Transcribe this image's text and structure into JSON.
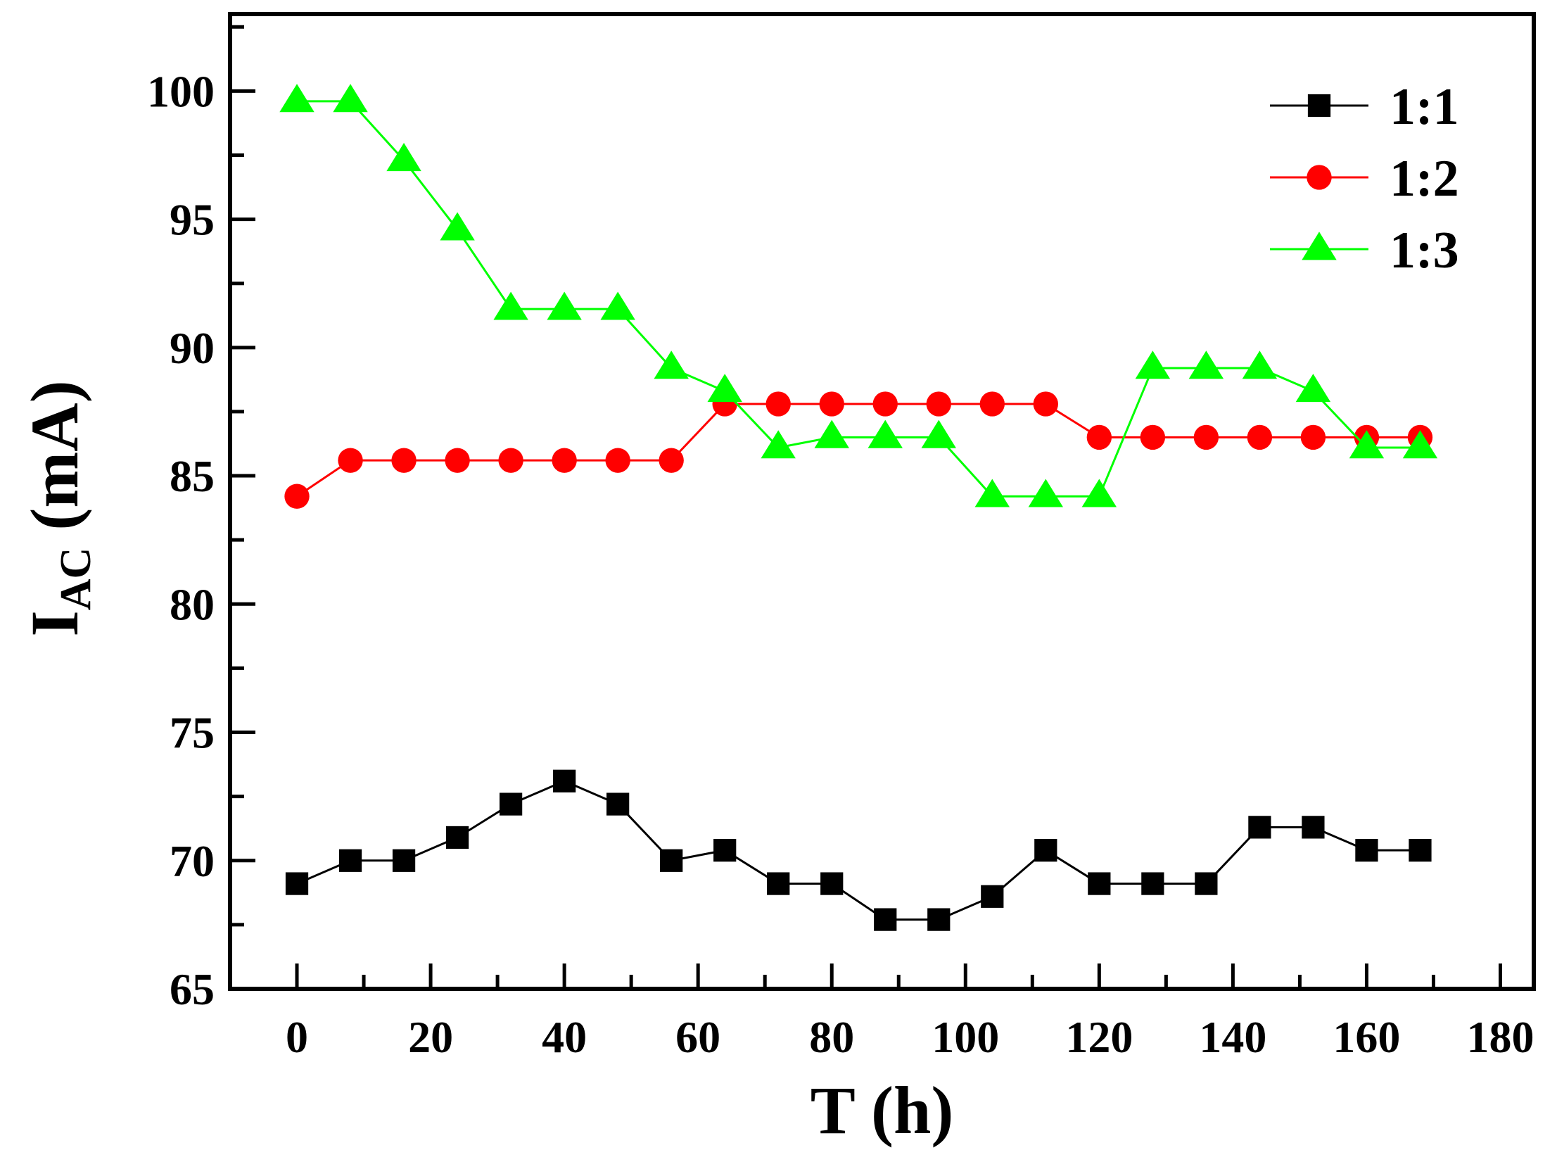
{
  "chart_data": {
    "type": "line",
    "title": "",
    "xlabel": "T (h)",
    "ylabel": {
      "main": "I",
      "subscript": "AC",
      "units": " (mA)"
    },
    "xlim": [
      -10,
      185
    ],
    "ylim": [
      65,
      103
    ],
    "xticks": [
      0,
      20,
      40,
      60,
      80,
      100,
      120,
      140,
      160,
      180
    ],
    "yticks": [
      65,
      70,
      75,
      80,
      85,
      90,
      95,
      100
    ],
    "grid": false,
    "legend_position": "top-right",
    "x": [
      0,
      8,
      16,
      24,
      32,
      40,
      48,
      56,
      64,
      72,
      80,
      88,
      96,
      104,
      112,
      120,
      128,
      136,
      144,
      152,
      160,
      168
    ],
    "series": [
      {
        "name": "1:1",
        "marker": "square",
        "color": "#000000",
        "values": [
          69.1,
          70.0,
          70.0,
          70.9,
          72.2,
          73.1,
          72.2,
          70.0,
          70.4,
          69.1,
          69.1,
          67.7,
          67.7,
          68.6,
          70.4,
          69.1,
          69.1,
          69.1,
          71.3,
          71.3,
          70.4,
          70.4
        ]
      },
      {
        "name": "1:2",
        "marker": "circle",
        "color": "#ff0000",
        "values": [
          84.2,
          85.6,
          85.6,
          85.6,
          85.6,
          85.6,
          85.6,
          85.6,
          87.8,
          87.8,
          87.8,
          87.8,
          87.8,
          87.8,
          87.8,
          86.5,
          86.5,
          86.5,
          86.5,
          86.5,
          86.5,
          86.5
        ]
      },
      {
        "name": "1:3",
        "marker": "triangle",
        "color": "#00ff00",
        "values": [
          99.6,
          99.6,
          97.3,
          94.6,
          91.5,
          91.5,
          91.5,
          89.2,
          88.3,
          86.1,
          86.5,
          86.5,
          86.5,
          84.2,
          84.2,
          84.2,
          89.2,
          89.2,
          89.2,
          88.3,
          86.1,
          86.1
        ]
      }
    ]
  }
}
